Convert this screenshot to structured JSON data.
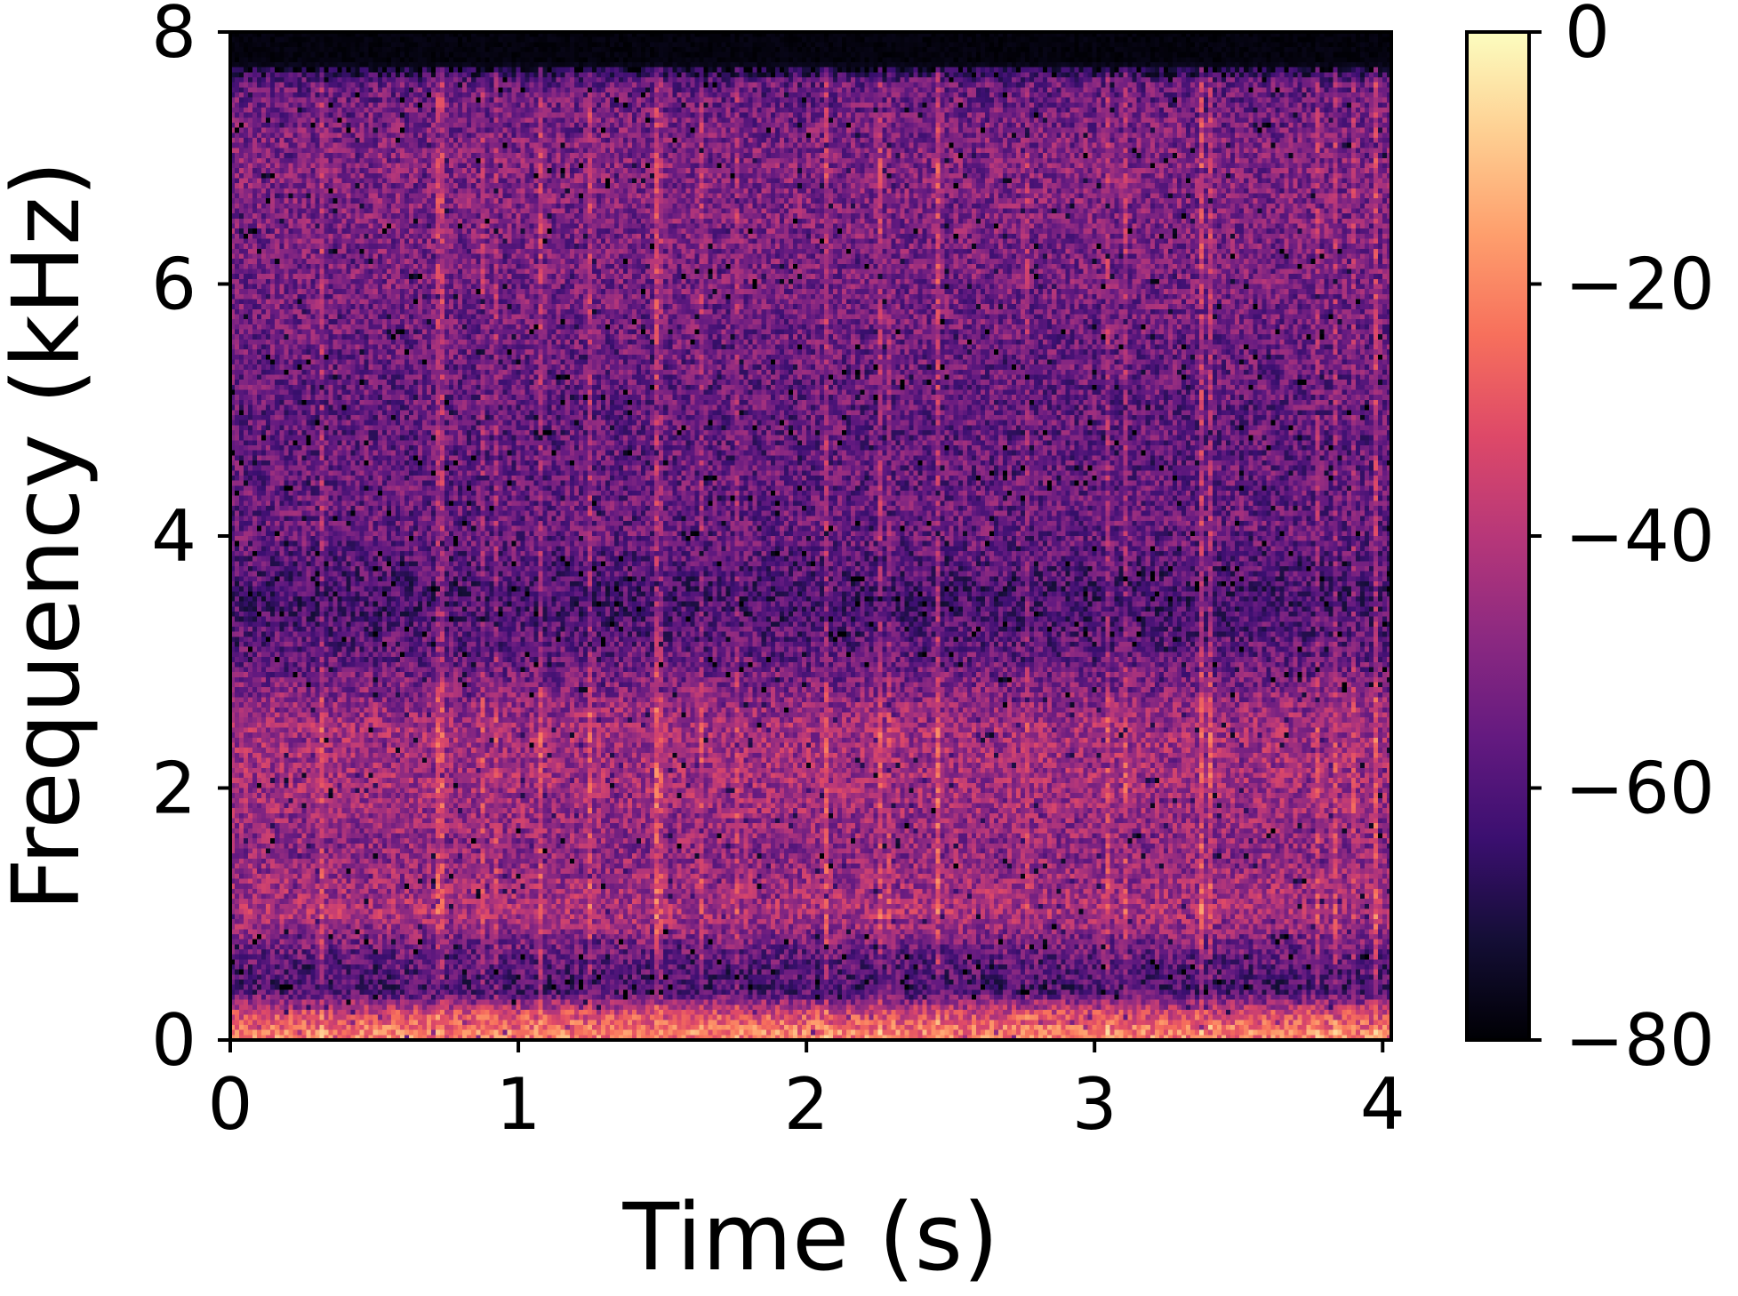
{
  "chart_data": {
    "type": "heatmap",
    "subtype": "spectrogram",
    "xlabel": "Time (s)",
    "ylabel": "Frequency (kHz)",
    "xlim": [
      0,
      4.03
    ],
    "ylim": [
      0,
      8
    ],
    "x_ticks": [
      0,
      1,
      2,
      3,
      4
    ],
    "y_ticks": [
      0,
      2,
      4,
      6,
      8
    ],
    "colormap": "magma",
    "colorbar": {
      "label": "",
      "range": [
        -80,
        0
      ],
      "ticks": [
        0,
        -20,
        -40,
        -60,
        -80
      ],
      "tick_labels": [
        "0",
        "−20",
        "−40",
        "−60",
        "−80"
      ]
    },
    "grid": false,
    "approximate_level_profile_db": [
      {
        "freq_khz": 0.05,
        "db": -22
      },
      {
        "freq_khz": 0.2,
        "db": -32
      },
      {
        "freq_khz": 0.4,
        "db": -62
      },
      {
        "freq_khz": 0.7,
        "db": -55
      },
      {
        "freq_khz": 1.0,
        "db": -42
      },
      {
        "freq_khz": 1.5,
        "db": -48
      },
      {
        "freq_khz": 2.0,
        "db": -44
      },
      {
        "freq_khz": 2.5,
        "db": -44
      },
      {
        "freq_khz": 3.0,
        "db": -55
      },
      {
        "freq_khz": 3.5,
        "db": -62
      },
      {
        "freq_khz": 4.0,
        "db": -55
      },
      {
        "freq_khz": 5.0,
        "db": -56
      },
      {
        "freq_khz": 6.0,
        "db": -52
      },
      {
        "freq_khz": 7.0,
        "db": -50
      },
      {
        "freq_khz": 7.6,
        "db": -55
      },
      {
        "freq_khz": 7.75,
        "db": -80
      },
      {
        "freq_khz": 8.0,
        "db": -80
      }
    ]
  }
}
